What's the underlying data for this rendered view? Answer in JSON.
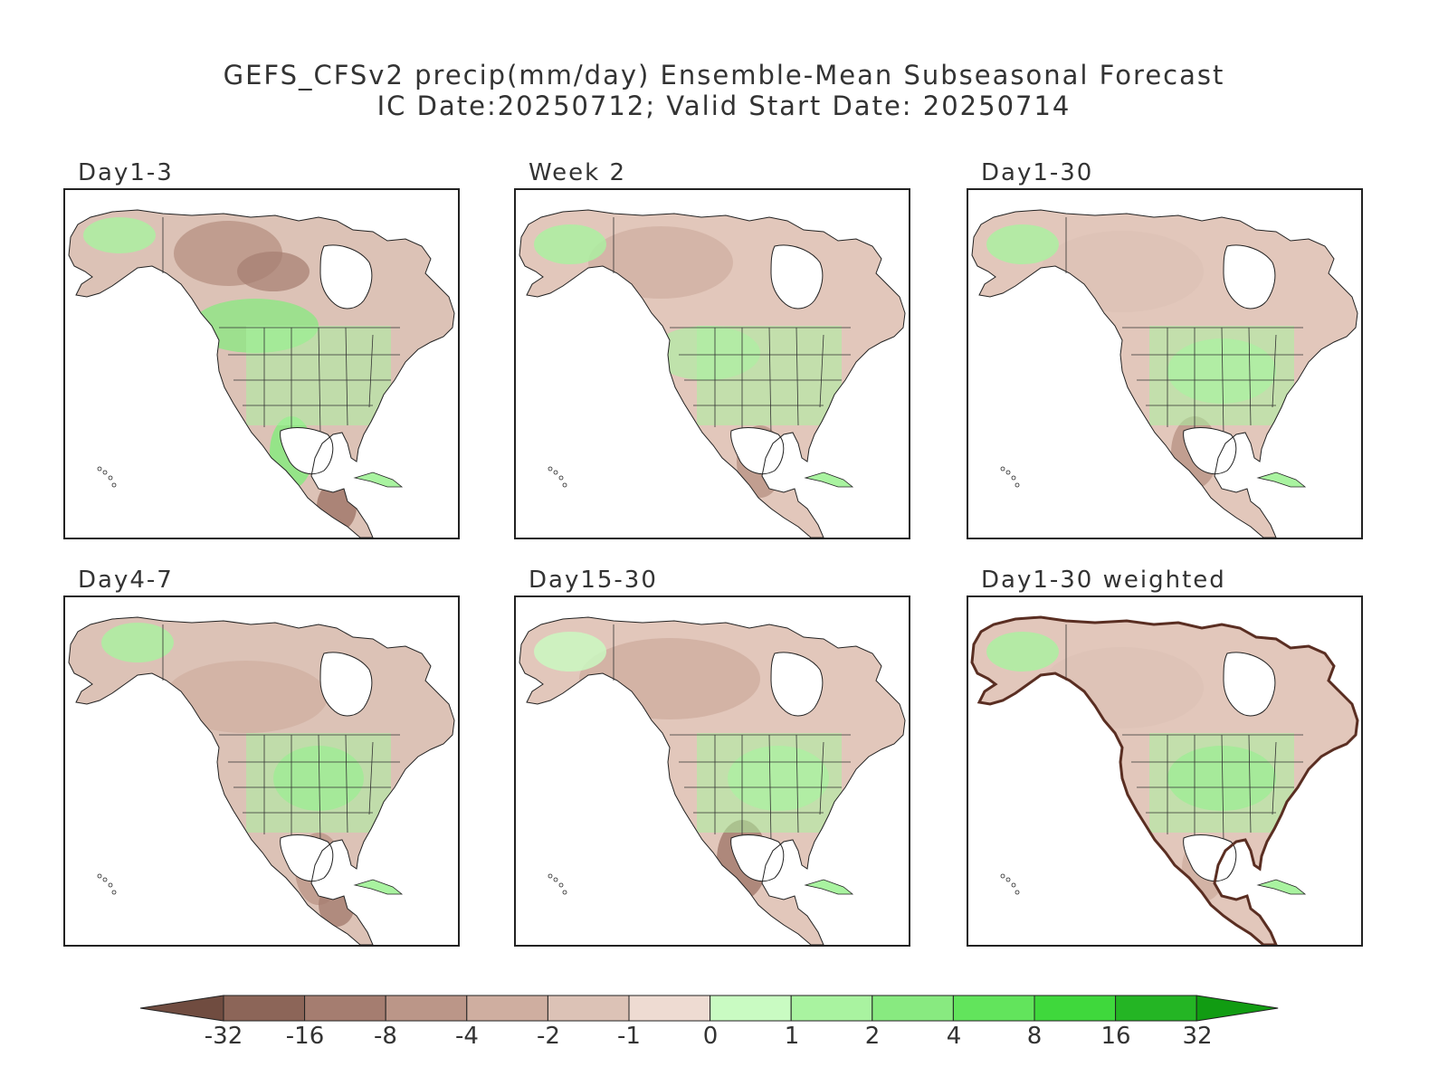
{
  "title": {
    "line1": "GEFS_CFSv2 precip(mm/day) Ensemble-Mean Subseasonal Forecast",
    "line2": "IC Date:20250712; Valid Start Date: 20250714"
  },
  "panels": [
    {
      "label": "Day1-3",
      "icon": "north-america-precip-map",
      "style": "day13"
    },
    {
      "label": "Week 2",
      "icon": "north-america-precip-map",
      "style": "week2"
    },
    {
      "label": "Day1-30",
      "icon": "north-america-precip-map",
      "style": "day130"
    },
    {
      "label": "Day4-7",
      "icon": "north-america-precip-map",
      "style": "day47"
    },
    {
      "label": "Day15-30",
      "icon": "north-america-precip-map",
      "style": "day1530"
    },
    {
      "label": "Day1-30 weighted",
      "icon": "north-america-precip-map",
      "style": "weighted"
    }
  ],
  "colorbar": {
    "ticks": [
      "-32",
      "-16",
      "-8",
      "-4",
      "-2",
      "-1",
      "0",
      "1",
      "2",
      "4",
      "8",
      "16",
      "32"
    ],
    "colors": [
      "#704c40",
      "#8c6558",
      "#a57d70",
      "#bb9688",
      "#cfaea0",
      "#dcc2b6",
      "#eedbd2",
      "#c9fbc2",
      "#a9f3a0",
      "#88ea80",
      "#62e45c",
      "#3fd83c",
      "#24b524",
      "#119c12"
    ]
  }
}
